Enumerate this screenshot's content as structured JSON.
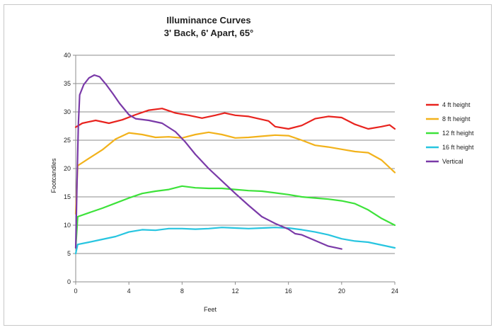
{
  "chart_data": {
    "type": "line",
    "title": "Illuminance Curves",
    "subtitle": "3' Back, 6' Apart, 65°",
    "xlabel": "Feet",
    "ylabel": "Footcandles",
    "xlim": [
      0,
      24
    ],
    "ylim": [
      0,
      40
    ],
    "xticks": [
      0,
      4,
      8,
      12,
      16,
      20,
      24
    ],
    "yticks": [
      0,
      5,
      10,
      15,
      20,
      25,
      30,
      35,
      40
    ],
    "grid": "horizontal",
    "legend": "right",
    "series": [
      {
        "name": "4 ft height",
        "color": "#e8231e",
        "points": [
          [
            0,
            27.3
          ],
          [
            0.5,
            28.0
          ],
          [
            1.5,
            28.5
          ],
          [
            2.5,
            28.0
          ],
          [
            3.5,
            28.6
          ],
          [
            4.5,
            29.5
          ],
          [
            5.5,
            30.3
          ],
          [
            6.5,
            30.6
          ],
          [
            7.5,
            29.8
          ],
          [
            8.5,
            29.4
          ],
          [
            9.5,
            28.9
          ],
          [
            10.5,
            29.4
          ],
          [
            11.2,
            29.8
          ],
          [
            12,
            29.4
          ],
          [
            13,
            29.2
          ],
          [
            14.5,
            28.4
          ],
          [
            15,
            27.4
          ],
          [
            16,
            27.0
          ],
          [
            17,
            27.6
          ],
          [
            18,
            28.8
          ],
          [
            19,
            29.2
          ],
          [
            20,
            29.0
          ],
          [
            21,
            27.8
          ],
          [
            22,
            27.0
          ],
          [
            23,
            27.4
          ],
          [
            23.6,
            27.7
          ],
          [
            24,
            27.0
          ]
        ]
      },
      {
        "name": "8 ft height",
        "color": "#f2b21b",
        "points": [
          [
            0,
            12.0
          ],
          [
            0.15,
            20.5
          ],
          [
            1,
            21.8
          ],
          [
            2,
            23.3
          ],
          [
            3,
            25.2
          ],
          [
            4,
            26.3
          ],
          [
            5,
            26.0
          ],
          [
            6,
            25.5
          ],
          [
            7,
            25.6
          ],
          [
            8,
            25.4
          ],
          [
            9,
            26.0
          ],
          [
            10,
            26.4
          ],
          [
            11,
            26.0
          ],
          [
            12,
            25.4
          ],
          [
            13,
            25.5
          ],
          [
            14,
            25.7
          ],
          [
            15,
            25.9
          ],
          [
            16,
            25.8
          ],
          [
            17,
            25.0
          ],
          [
            18,
            24.1
          ],
          [
            19,
            23.8
          ],
          [
            20,
            23.4
          ],
          [
            21,
            23.0
          ],
          [
            22,
            22.8
          ],
          [
            23,
            21.5
          ],
          [
            24,
            19.3
          ]
        ]
      },
      {
        "name": "12 ft height",
        "color": "#3de23a",
        "points": [
          [
            0,
            6.0
          ],
          [
            0.15,
            11.5
          ],
          [
            1,
            12.2
          ],
          [
            2,
            13.0
          ],
          [
            3,
            13.9
          ],
          [
            4,
            14.8
          ],
          [
            5,
            15.6
          ],
          [
            6,
            16.0
          ],
          [
            7,
            16.3
          ],
          [
            8,
            16.9
          ],
          [
            9,
            16.6
          ],
          [
            10,
            16.5
          ],
          [
            11,
            16.5
          ],
          [
            12,
            16.3
          ],
          [
            13,
            16.1
          ],
          [
            14,
            16.0
          ],
          [
            15,
            15.7
          ],
          [
            16,
            15.4
          ],
          [
            17,
            15.0
          ],
          [
            18,
            14.8
          ],
          [
            19,
            14.6
          ],
          [
            20,
            14.3
          ],
          [
            21,
            13.8
          ],
          [
            22,
            12.7
          ],
          [
            23,
            11.2
          ],
          [
            24,
            10.0
          ]
        ]
      },
      {
        "name": "16 ft height",
        "color": "#27c5e0",
        "points": [
          [
            0,
            5.0
          ],
          [
            0.15,
            6.6
          ],
          [
            1,
            7.0
          ],
          [
            2,
            7.5
          ],
          [
            3,
            8.0
          ],
          [
            4,
            8.8
          ],
          [
            5,
            9.2
          ],
          [
            6,
            9.1
          ],
          [
            7,
            9.4
          ],
          [
            8,
            9.4
          ],
          [
            9,
            9.3
          ],
          [
            10,
            9.4
          ],
          [
            11,
            9.6
          ],
          [
            12,
            9.5
          ],
          [
            13,
            9.4
          ],
          [
            14,
            9.5
          ],
          [
            15,
            9.6
          ],
          [
            16,
            9.5
          ],
          [
            17,
            9.2
          ],
          [
            18,
            8.8
          ],
          [
            19,
            8.3
          ],
          [
            20,
            7.6
          ],
          [
            21,
            7.2
          ],
          [
            22,
            7.0
          ],
          [
            23,
            6.5
          ],
          [
            24,
            6.0
          ]
        ]
      },
      {
        "name": "Vertical",
        "color": "#7a3aa8",
        "points": [
          [
            0,
            6.0
          ],
          [
            0.1,
            18.0
          ],
          [
            0.2,
            28.0
          ],
          [
            0.3,
            33.0
          ],
          [
            0.6,
            34.8
          ],
          [
            1.0,
            36.0
          ],
          [
            1.4,
            36.5
          ],
          [
            1.8,
            36.2
          ],
          [
            2.3,
            34.8
          ],
          [
            2.8,
            33.2
          ],
          [
            3.3,
            31.5
          ],
          [
            4.0,
            29.5
          ],
          [
            4.5,
            28.8
          ],
          [
            5.5,
            28.5
          ],
          [
            6.5,
            28.0
          ],
          [
            7.5,
            26.5
          ],
          [
            8.2,
            24.8
          ],
          [
            9,
            22.5
          ],
          [
            10,
            20.0
          ],
          [
            11,
            17.8
          ],
          [
            12,
            15.6
          ],
          [
            13,
            13.5
          ],
          [
            14,
            11.5
          ],
          [
            15,
            10.3
          ],
          [
            16,
            9.3
          ],
          [
            16.5,
            8.5
          ],
          [
            17,
            8.3
          ],
          [
            18,
            7.3
          ],
          [
            19,
            6.3
          ],
          [
            20,
            5.8
          ]
        ]
      }
    ]
  }
}
